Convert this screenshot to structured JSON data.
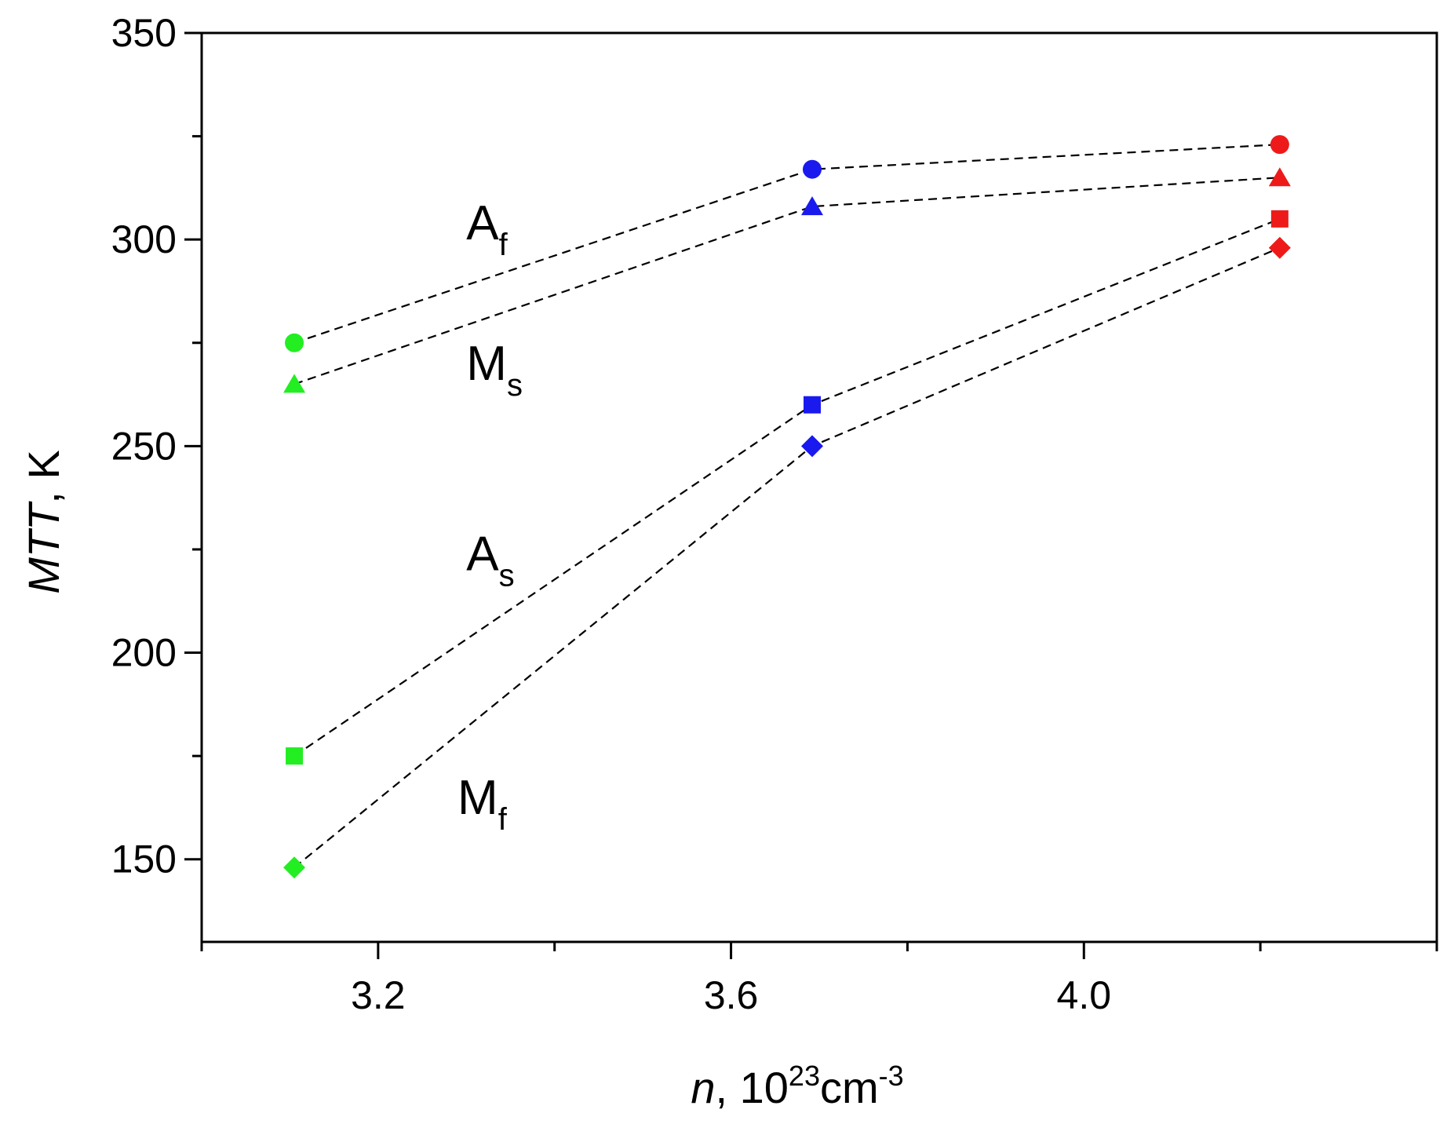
{
  "chart_data": {
    "type": "scatter",
    "title": "",
    "xlabel": {
      "italic": "n",
      "rest": ", 10",
      "sup1": "23",
      "mid": "cm",
      "sup2": "-3"
    },
    "ylabel": {
      "italic": "MTT",
      "rest": ", K"
    },
    "xlim": [
      3.0,
      4.4
    ],
    "ylim": [
      130,
      350
    ],
    "xticks": [
      3.2,
      3.6,
      4.0
    ],
    "xtick_labels": [
      "3.2",
      "3.6",
      "4.0"
    ],
    "yticks": [
      150,
      200,
      250,
      300,
      350
    ],
    "ytick_labels": [
      "150",
      "200",
      "250",
      "300",
      "350"
    ],
    "x": [
      3.105,
      3.692,
      4.222
    ],
    "point_colors": [
      "#22ee22",
      "#1a1aee",
      "#ee1a1a"
    ],
    "line_style": "dashed",
    "series": [
      {
        "name": "Af",
        "main": "A",
        "sub": "f",
        "marker": "circle",
        "values": [
          275,
          317,
          323
        ]
      },
      {
        "name": "Ms",
        "main": "M",
        "sub": "s",
        "marker": "triangle",
        "values": [
          265,
          308,
          315
        ]
      },
      {
        "name": "As",
        "main": "A",
        "sub": "s",
        "marker": "square",
        "values": [
          175,
          260,
          305
        ]
      },
      {
        "name": "Mf",
        "main": "M",
        "sub": "f",
        "marker": "diamond",
        "values": [
          148,
          250,
          298
        ]
      }
    ],
    "series_label_positions": {
      "Af": [
        3.3,
        300
      ],
      "Ms": [
        3.3,
        266
      ],
      "As": [
        3.3,
        220
      ],
      "Mf": [
        3.29,
        161
      ]
    }
  }
}
